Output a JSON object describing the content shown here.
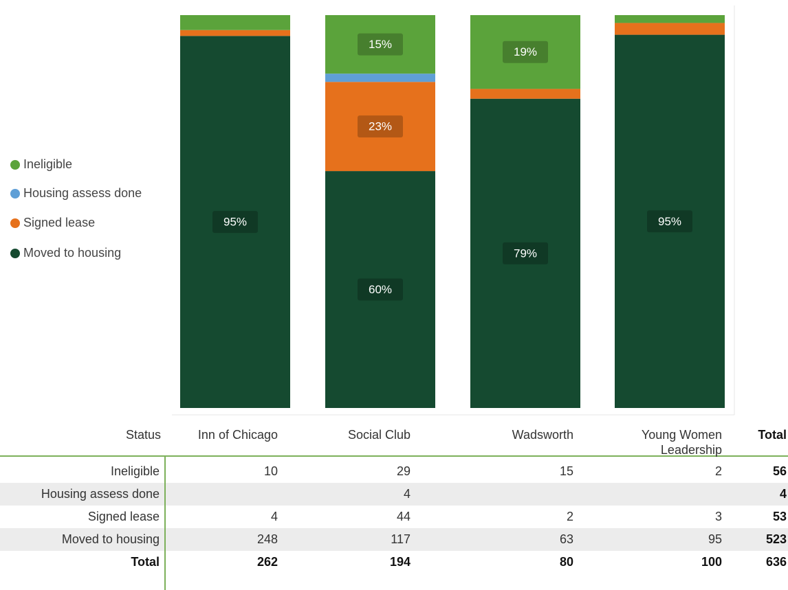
{
  "chart_data": {
    "type": "stacked_bar_100",
    "categories": [
      "Inn of Chicago",
      "Social Club",
      "Wadsworth",
      "Young Women Leadership"
    ],
    "series": [
      {
        "name": "Ineligible",
        "color": "#5ba33b",
        "values": [
          3.8,
          14.9,
          18.8,
          2
        ],
        "value_labels": [
          null,
          "15%",
          "19%",
          null
        ]
      },
      {
        "name": "Housing assess done",
        "color": "#5f9fd6",
        "values": [
          null,
          2.1,
          null,
          null
        ],
        "value_labels": [
          null,
          null,
          null,
          null
        ]
      },
      {
        "name": "Signed lease",
        "color": "#e6711c",
        "values": [
          1.5,
          22.7,
          2.5,
          3
        ],
        "value_labels": [
          null,
          "23%",
          null,
          null
        ]
      },
      {
        "name": "Moved to housing",
        "color": "#154a30",
        "values": [
          94.7,
          60.3,
          78.8,
          95
        ],
        "value_labels": [
          "95%",
          "60%",
          "79%",
          "95%"
        ]
      }
    ],
    "legend": "left"
  },
  "table": {
    "header": "Status",
    "total_label": "Total",
    "rows": [
      {
        "values": [
          10,
          29,
          15,
          2
        ],
        "total": 56
      },
      {
        "values": [
          null,
          4,
          null,
          null
        ],
        "total": 4
      },
      {
        "values": [
          4,
          44,
          2,
          3
        ],
        "total": 53
      },
      {
        "values": [
          248,
          117,
          63,
          95
        ],
        "total": 523
      }
    ],
    "totals": [
      262,
      194,
      80,
      100
    ],
    "grand_total": 636
  }
}
